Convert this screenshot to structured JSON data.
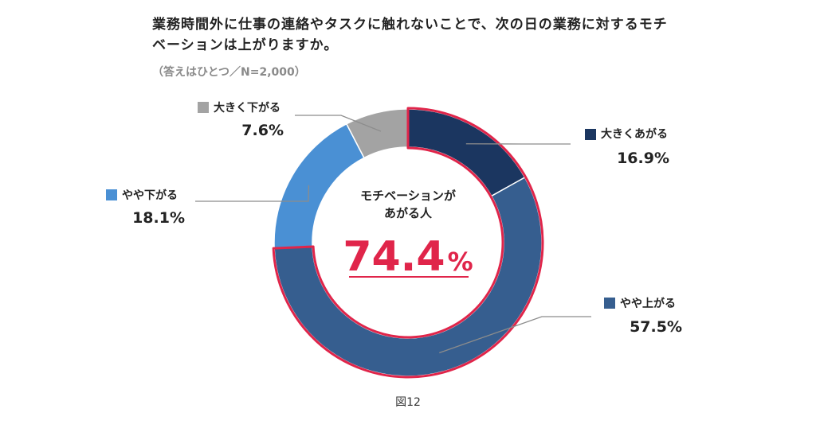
{
  "title": "業務時間外に仕事の連絡やタスクに触れないことで、次の日の業務に対するモチベーションは上がりますか。",
  "subtitle": "（答えはひとつ／N=2,000）",
  "caption": "図12",
  "center": {
    "label_line1": "モチベーションが",
    "label_line2": "あがる人",
    "value": "74.4",
    "unit": "%"
  },
  "colors": {
    "accent": "#e0254a"
  },
  "chart_data": {
    "type": "pie",
    "donut": true,
    "categories": [
      "大きくあがる",
      "やや上がる",
      "やや下がる",
      "大きく下がる"
    ],
    "values": [
      16.9,
      57.5,
      18.1,
      7.6
    ],
    "value_labels": [
      "16.9%",
      "57.5%",
      "18.1%",
      "7.6%"
    ],
    "colors": [
      "#1b3660",
      "#365e8f",
      "#4a90d4",
      "#a3a3a3"
    ],
    "highlighted": [
      "大きくあがる",
      "やや上がる"
    ],
    "title": "業務時間外に仕事の連絡やタスクに触れないことで、次の日の業務に対するモチベーションは上がりますか。",
    "subtitle": "（答えはひとつ／N=2,000）"
  }
}
